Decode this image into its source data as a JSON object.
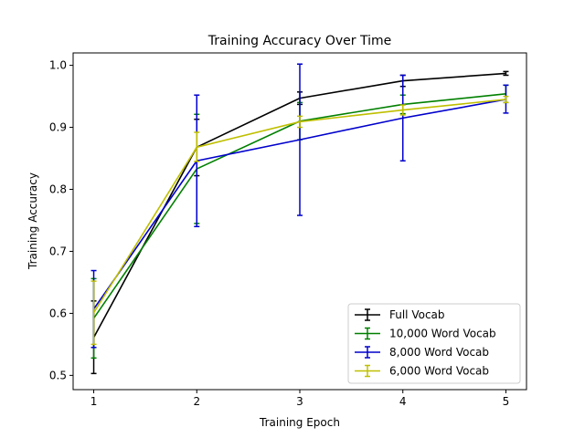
{
  "chart_data": {
    "type": "line",
    "title": "Training Accuracy Over Time",
    "xlabel": "Training Epoch",
    "ylabel": "Training Accuracy",
    "x": [
      1,
      2,
      3,
      4,
      5
    ],
    "xticks": [
      "1",
      "2",
      "3",
      "4",
      "5"
    ],
    "yticks": [
      "0.5",
      "0.6",
      "0.7",
      "0.8",
      "0.9",
      "1.0"
    ],
    "xlim": [
      0.8,
      5.2
    ],
    "ylim": [
      0.477,
      1.02
    ],
    "grid": false,
    "legend_position": "bottom-right",
    "series": [
      {
        "name": "Full Vocab",
        "color": "#000000",
        "values": [
          0.561,
          0.868,
          0.947,
          0.975,
          0.987
        ],
        "err_low": [
          0.503,
          0.822,
          0.937,
          0.966,
          0.984
        ],
        "err_high": [
          0.62,
          0.913,
          0.957,
          0.984,
          0.99
        ]
      },
      {
        "name": "10,000 Word Vocab",
        "color": "#008000",
        "values": [
          0.592,
          0.833,
          0.91,
          0.937,
          0.954
        ],
        "err_low": [
          0.528,
          0.745,
          0.88,
          0.922,
          0.94
        ],
        "err_high": [
          0.656,
          0.921,
          0.94,
          0.952,
          0.968
        ]
      },
      {
        "name": "8,000 Word Vocab",
        "color": "#0000cc",
        "values": [
          0.607,
          0.846,
          0.88,
          0.915,
          0.945
        ],
        "err_low": [
          0.545,
          0.74,
          0.758,
          0.846,
          0.923
        ],
        "err_high": [
          0.669,
          0.952,
          1.002,
          0.984,
          0.968
        ]
      },
      {
        "name": "6,000 Word Vocab",
        "color": "#bfbf00",
        "values": [
          0.601,
          0.868,
          0.909,
          0.928,
          0.945
        ],
        "err_low": [
          0.55,
          0.845,
          0.9,
          0.92,
          0.94
        ],
        "err_high": [
          0.652,
          0.892,
          0.918,
          0.936,
          0.95
        ]
      }
    ]
  }
}
